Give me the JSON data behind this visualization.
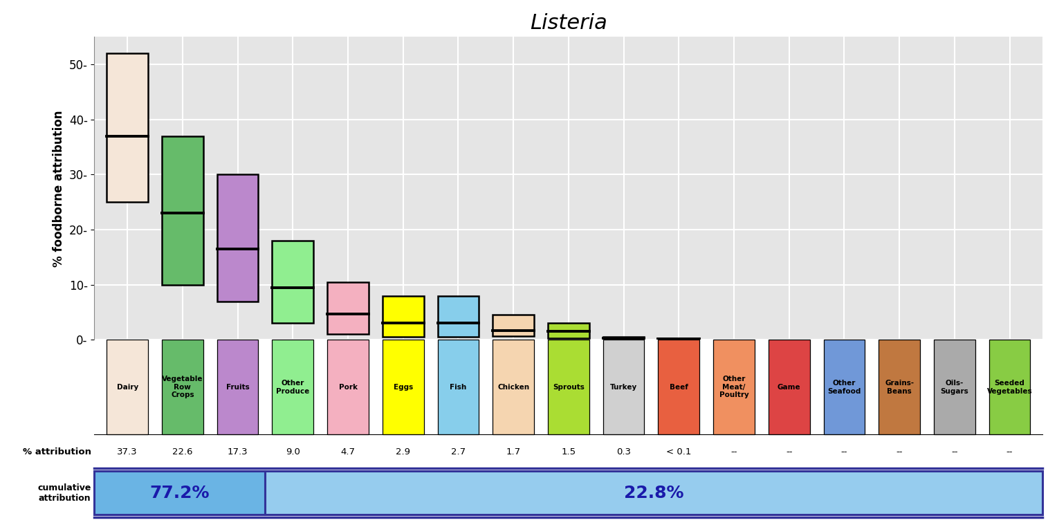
{
  "title": "Listeria",
  "ylabel": "% foodborne attribution",
  "categories": [
    "Dairy",
    "Vegetable\nRow\nCrops",
    "Fruits",
    "Other\nProduce",
    "Pork",
    "Eggs",
    "Fish",
    "Chicken",
    "Sprouts",
    "Turkey",
    "Beef",
    "Other\nMeat/\nPoultry",
    "Game",
    "Other\nSeafood",
    "Grains-\nBeans",
    "Oils-\nSugars",
    "Seeded\nVegetables"
  ],
  "colors": [
    "#f5e6d8",
    "#66bb6a",
    "#bb88cc",
    "#90ee90",
    "#f4b0c0",
    "#ffff00",
    "#87ceeb",
    "#f5d5b0",
    "#aadd33",
    "#d0d0d0",
    "#e86040",
    "#f09060",
    "#dd4444",
    "#7098d8",
    "#c07840",
    "#aaaaaa",
    "#88cc44"
  ],
  "box_low": [
    25,
    10,
    7,
    3,
    1.0,
    0.5,
    0.5,
    0.7,
    0.3,
    0.05,
    0.0,
    0.0,
    0.0,
    0.0,
    0.0,
    0.0,
    0.0
  ],
  "box_high": [
    52,
    37,
    30,
    18,
    10.5,
    8.0,
    8.0,
    4.5,
    3.0,
    0.5,
    0.3,
    0.0,
    0.0,
    0.0,
    0.0,
    0.0,
    0.0
  ],
  "box_median": [
    37,
    23,
    16.5,
    9.5,
    4.7,
    3.0,
    3.0,
    1.7,
    1.5,
    0.3,
    0.1,
    0.0,
    0.0,
    0.0,
    0.0,
    0.0,
    0.0
  ],
  "pct_attribution": [
    "37.3",
    "22.6",
    "17.3",
    "9.0",
    "4.7",
    "2.9",
    "2.7",
    "1.7",
    "1.5",
    "0.3",
    "< 0.1",
    "--",
    "--",
    "--",
    "--",
    "--",
    "--"
  ],
  "cumulative_left_pct": "77.2%",
  "cumulative_right_pct": "22.8%",
  "cumulative_left_color": "#6ab4e4",
  "cumulative_right_color": "#96ccee",
  "cumulative_divider_n": 3,
  "ylim": [
    0,
    55
  ],
  "yticks": [
    0,
    10,
    20,
    30,
    40,
    50
  ],
  "background_color": "#e5e5e5",
  "grid_color": "#ffffff"
}
